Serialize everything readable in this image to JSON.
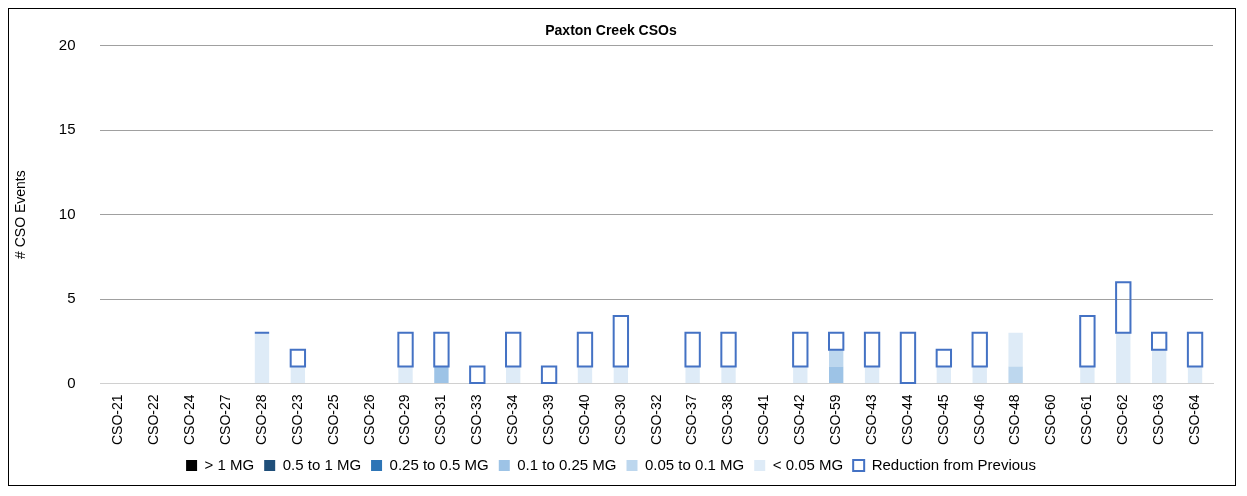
{
  "chart_data": {
    "type": "bar",
    "title": "Paxton Creek CSOs",
    "ylabel": "# CSO Events",
    "categories": [
      "CSO-21",
      "CSO-22",
      "CSO-24",
      "CSO-27",
      "CSO-28",
      "CSO-23",
      "CSO-25",
      "CSO-26",
      "CSO-29",
      "CSO-31",
      "CSO-33",
      "CSO-34",
      "CSO-39",
      "CSO-40",
      "CSO-30",
      "CSO-32",
      "CSO-37",
      "CSO-38",
      "CSO-41",
      "CSO-42",
      "CSO-59",
      "CSO-43",
      "CSO-44",
      "CSO-45",
      "CSO-46",
      "CSO-48",
      "CSO-60",
      "CSO-61",
      "CSO-62",
      "CSO-63",
      "CSO-64"
    ],
    "stacked": true,
    "ylim": [
      0,
      20
    ],
    "yticks": [
      0,
      5,
      10,
      15,
      20
    ],
    "grid": "y",
    "legend": "bottom",
    "series": [
      {
        "name": "> 1 MG",
        "color": "#000000",
        "values": [
          0,
          0,
          0,
          0,
          0,
          0,
          0,
          0,
          0,
          0,
          0,
          0,
          0,
          0,
          0,
          0,
          0,
          0,
          0,
          0,
          0,
          0,
          0,
          0,
          0,
          0,
          0,
          0,
          0,
          0,
          0
        ]
      },
      {
        "name": "0.5 to 1 MG",
        "color": "#1f4e79",
        "values": [
          0,
          0,
          0,
          0,
          0,
          0,
          0,
          0,
          0,
          0,
          0,
          0,
          0,
          0,
          0,
          0,
          0,
          0,
          0,
          0,
          0,
          0,
          0,
          0,
          0,
          0,
          0,
          0,
          0,
          0,
          0
        ]
      },
      {
        "name": "0.25 to 0.5 MG",
        "color": "#2e75b6",
        "values": [
          0,
          0,
          0,
          0,
          0,
          0,
          0,
          0,
          0,
          0,
          0,
          0,
          0,
          0,
          0,
          0,
          0,
          0,
          0,
          0,
          0,
          0,
          0,
          0,
          0,
          0,
          0,
          0,
          0,
          0,
          0
        ]
      },
      {
        "name": "0.1 to 0.25 MG",
        "color": "#9dc3e6",
        "values": [
          0,
          0,
          0,
          0,
          0,
          0,
          0,
          0,
          0,
          1,
          0,
          0,
          0,
          0,
          0,
          0,
          0,
          0,
          0,
          0,
          1,
          0,
          0,
          0,
          0,
          0,
          0,
          0,
          0,
          0,
          0
        ]
      },
      {
        "name": "0.05 to 0.1 MG",
        "color": "#bdd7ee",
        "values": [
          0,
          0,
          0,
          0,
          0,
          0,
          0,
          0,
          0,
          0,
          0,
          0,
          0,
          0,
          0,
          0,
          0,
          0,
          0,
          0,
          1,
          0,
          0,
          0,
          0,
          1,
          0,
          0,
          0,
          0,
          0
        ]
      },
      {
        "name": "< 0.05 MG",
        "color": "#deebf7",
        "values": [
          0,
          0,
          0,
          0,
          3,
          1,
          0,
          0,
          1,
          0,
          0,
          1,
          0,
          1,
          1,
          0,
          1,
          1,
          0,
          1,
          0,
          1,
          0,
          1,
          1,
          2,
          0,
          1,
          3,
          2,
          1
        ]
      },
      {
        "name": "Reduction from Previous",
        "color": "#4472c4",
        "line_style": "solid",
        "values": [
          null,
          null,
          null,
          null,
          0,
          1,
          null,
          null,
          2,
          2,
          1,
          2,
          1,
          2,
          3,
          null,
          2,
          2,
          null,
          2,
          1,
          2,
          3,
          1,
          2,
          null,
          null,
          3,
          3,
          1,
          2
        ]
      }
    ]
  }
}
